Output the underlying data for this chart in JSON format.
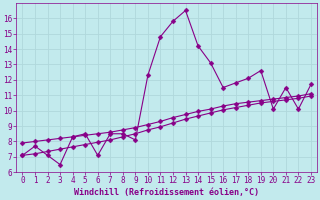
{
  "xlabel": "Windchill (Refroidissement éolien,°C)",
  "ylabel": "",
  "bg_color": "#c2eaed",
  "line_color": "#880088",
  "grid_color": "#b0d8dc",
  "xlim": [
    -0.5,
    23.5
  ],
  "ylim": [
    6,
    17
  ],
  "xticks": [
    0,
    1,
    2,
    3,
    4,
    5,
    6,
    7,
    8,
    9,
    10,
    11,
    12,
    13,
    14,
    15,
    16,
    17,
    18,
    19,
    20,
    21,
    22,
    23
  ],
  "yticks": [
    6,
    7,
    8,
    9,
    10,
    11,
    12,
    13,
    14,
    15,
    16
  ],
  "line1_x": [
    0,
    1,
    2,
    3,
    4,
    5,
    6,
    7,
    8,
    9,
    10,
    11,
    12,
    13,
    14,
    15,
    16,
    17,
    18,
    19,
    20,
    21,
    22,
    23
  ],
  "line1_y": [
    7.1,
    7.7,
    7.1,
    6.5,
    8.3,
    8.5,
    7.1,
    8.5,
    8.5,
    8.1,
    12.3,
    14.8,
    15.8,
    16.5,
    14.2,
    13.1,
    11.5,
    11.8,
    12.1,
    12.6,
    10.1,
    11.5,
    10.1,
    11.7
  ],
  "line2_x": [
    0,
    1,
    2,
    3,
    4,
    5,
    6,
    7,
    8,
    9,
    10,
    11,
    12,
    13,
    14,
    15,
    16,
    17,
    18,
    19,
    20,
    21,
    22,
    23
  ],
  "line2_y": [
    7.9,
    8.0,
    8.1,
    8.2,
    8.3,
    8.4,
    8.5,
    8.6,
    8.75,
    8.9,
    9.1,
    9.3,
    9.55,
    9.75,
    9.95,
    10.1,
    10.3,
    10.45,
    10.55,
    10.65,
    10.75,
    10.85,
    10.95,
    11.1
  ],
  "line3_x": [
    0,
    1,
    2,
    3,
    4,
    5,
    6,
    7,
    8,
    9,
    10,
    11,
    12,
    13,
    14,
    15,
    16,
    17,
    18,
    19,
    20,
    21,
    22,
    23
  ],
  "line3_y": [
    7.1,
    7.2,
    7.35,
    7.5,
    7.65,
    7.8,
    7.95,
    8.1,
    8.3,
    8.5,
    8.75,
    8.95,
    9.2,
    9.45,
    9.65,
    9.85,
    10.05,
    10.2,
    10.35,
    10.5,
    10.6,
    10.7,
    10.8,
    10.95
  ],
  "marker": "D",
  "marker_size": 2.5,
  "linewidth": 0.8,
  "tick_fontsize": 5.5,
  "label_fontsize": 6,
  "title_fontsize": 7
}
